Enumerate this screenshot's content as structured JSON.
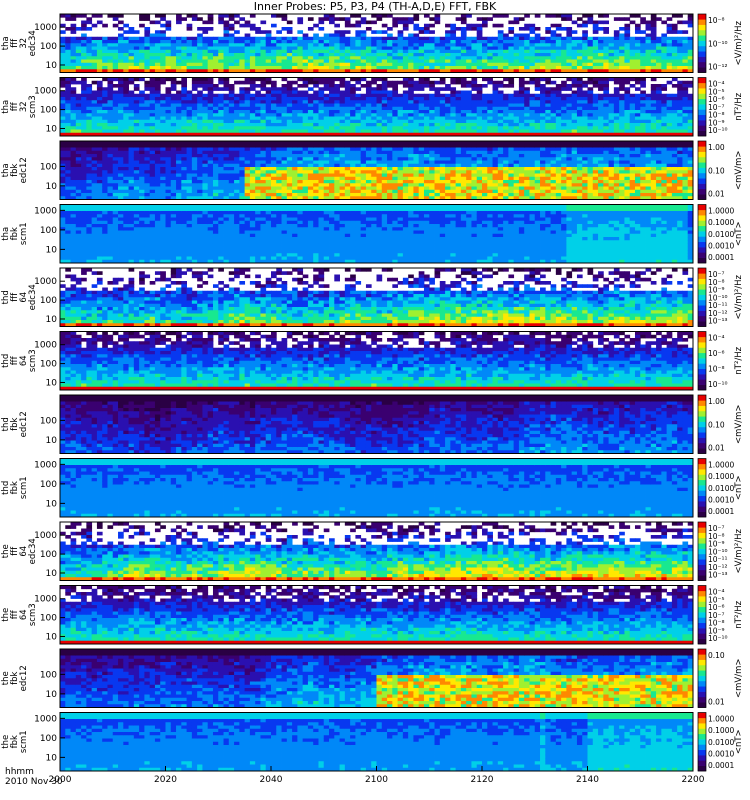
{
  "title": "Inner Probes: P5, P3, P4 (TH-A,D,E) FFT, FBK",
  "footer": {
    "time_label": "hhmm",
    "date_label": "2010 Nov 30"
  },
  "colors": {
    "colormap": [
      "#2a0044",
      "#3a0070",
      "#2a10b0",
      "#0838f0",
      "#0088f8",
      "#00d0e8",
      "#18e890",
      "#a0f030",
      "#ffe800",
      "#ff8800",
      "#e80000"
    ],
    "frame": "#000000",
    "missing": "#ffffff"
  },
  "chart_data": {
    "type": "heatmap",
    "x": {
      "label": "hhmm",
      "range": [
        "2000",
        "2200"
      ],
      "ticks": [
        "2000",
        "2020",
        "2040",
        "2100",
        "2120",
        "2140",
        "2200"
      ]
    },
    "panels": [
      {
        "probe": "tha",
        "label": [
          "tha",
          "fff",
          "32",
          "edc34"
        ],
        "yticks": [
          "1000",
          "100",
          "10"
        ],
        "ylog_range": [
          4,
          5000
        ],
        "colorbar_label": "<V/m)²/Hz",
        "colorbar_ticks": [
          "10⁻⁸",
          "10⁻¹⁰",
          "10⁻¹²"
        ],
        "pattern": "edc"
      },
      {
        "probe": "tha",
        "label": [
          "tha",
          "fff",
          "32",
          "scm3"
        ],
        "yticks": [
          "1000",
          "100",
          "10"
        ],
        "ylog_range": [
          4,
          5000
        ],
        "colorbar_label": "nT²/Hz",
        "colorbar_ticks": [
          "10⁻⁴",
          "10⁻⁵",
          "10⁻⁶",
          "10⁻⁷",
          "10⁻⁸",
          "10⁻⁹",
          "10⁻¹⁰"
        ],
        "pattern": "scm_fff"
      },
      {
        "probe": "tha",
        "label": [
          "tha",
          "fbk",
          "edc12"
        ],
        "yticks": [
          "100",
          "10"
        ],
        "ylog_range": [
          2,
          2000
        ],
        "colorbar_label": "<mV/m>",
        "colorbar_ticks": [
          "1.00",
          "0.10",
          "0.01"
        ],
        "pattern": "fbk_edc"
      },
      {
        "probe": "tha",
        "label": [
          "tha",
          "fbk",
          "scm1"
        ],
        "yticks": [
          "1000",
          "100",
          "10"
        ],
        "ylog_range": [
          2,
          2000
        ],
        "colorbar_label": "<nT>",
        "colorbar_ticks": [
          "1.0000",
          "0.1000",
          "0.0100",
          "0.0010",
          "0.0001"
        ],
        "pattern": "fbk_scm"
      },
      {
        "probe": "thd",
        "label": [
          "thd",
          "fff",
          "64",
          "edc34"
        ],
        "yticks": [
          "1000",
          "100",
          "10"
        ],
        "ylog_range": [
          4,
          5000
        ],
        "colorbar_label": "<V/m)²/Hz",
        "colorbar_ticks": [
          "10⁻⁷",
          "10⁻⁸",
          "10⁻⁹",
          "10⁻¹⁰",
          "10⁻¹¹",
          "10⁻¹²",
          "10⁻¹³"
        ],
        "pattern": "edc"
      },
      {
        "probe": "thd",
        "label": [
          "thd",
          "fff",
          "64",
          "scm3"
        ],
        "yticks": [
          "1000",
          "100",
          "10"
        ],
        "ylog_range": [
          4,
          5000
        ],
        "colorbar_label": "nT²/Hz",
        "colorbar_ticks": [
          "10⁻⁴",
          "10⁻⁶",
          "10⁻⁸",
          "10⁻¹⁰"
        ],
        "pattern": "scm_fff"
      },
      {
        "probe": "thd",
        "label": [
          "thd",
          "fbk",
          "edc12"
        ],
        "yticks": [
          "100",
          "10"
        ],
        "ylog_range": [
          2,
          2000
        ],
        "colorbar_label": "<mV/m>",
        "colorbar_ticks": [
          "1.00",
          "0.10",
          "0.01"
        ],
        "pattern": "fbk_edc"
      },
      {
        "probe": "thd",
        "label": [
          "thd",
          "fbk",
          "scm1"
        ],
        "yticks": [
          "1000",
          "100",
          "10"
        ],
        "ylog_range": [
          2,
          2000
        ],
        "colorbar_label": "<nT>",
        "colorbar_ticks": [
          "1.0000",
          "0.1000",
          "0.0100",
          "0.0010",
          "0.0001"
        ],
        "pattern": "fbk_scm"
      },
      {
        "probe": "the",
        "label": [
          "the",
          "fff",
          "64",
          "edc34"
        ],
        "yticks": [
          "1000",
          "100",
          "10"
        ],
        "ylog_range": [
          4,
          5000
        ],
        "colorbar_label": "<V/m)²/Hz",
        "colorbar_ticks": [
          "10⁻⁷",
          "10⁻⁸",
          "10⁻⁹",
          "10⁻¹⁰",
          "10⁻¹¹",
          "10⁻¹²",
          "10⁻¹³"
        ],
        "pattern": "edc"
      },
      {
        "probe": "the",
        "label": [
          "the",
          "fff",
          "64",
          "scm3"
        ],
        "yticks": [
          "1000",
          "100",
          "10"
        ],
        "ylog_range": [
          4,
          5000
        ],
        "colorbar_label": "nT²/Hz",
        "colorbar_ticks": [
          "10⁻⁴",
          "10⁻⁵",
          "10⁻⁶",
          "10⁻⁷",
          "10⁻⁸",
          "10⁻⁹",
          "10⁻¹⁰"
        ],
        "pattern": "scm_fff"
      },
      {
        "probe": "the",
        "label": [
          "the",
          "fbk",
          "edc12"
        ],
        "yticks": [
          "100",
          "10"
        ],
        "ylog_range": [
          2,
          2000
        ],
        "colorbar_label": "<mV/m>",
        "colorbar_ticks": [
          "0.10",
          "0.01"
        ],
        "pattern": "fbk_edc"
      },
      {
        "probe": "the",
        "label": [
          "the",
          "fbk",
          "scm1"
        ],
        "yticks": [
          "1000",
          "100",
          "10"
        ],
        "ylog_range": [
          2,
          2000
        ],
        "colorbar_label": "<nT>",
        "colorbar_ticks": [
          "1.0000",
          "0.1000",
          "0.0100",
          "0.0010",
          "0.0001"
        ],
        "pattern": "fbk_scm"
      }
    ]
  }
}
